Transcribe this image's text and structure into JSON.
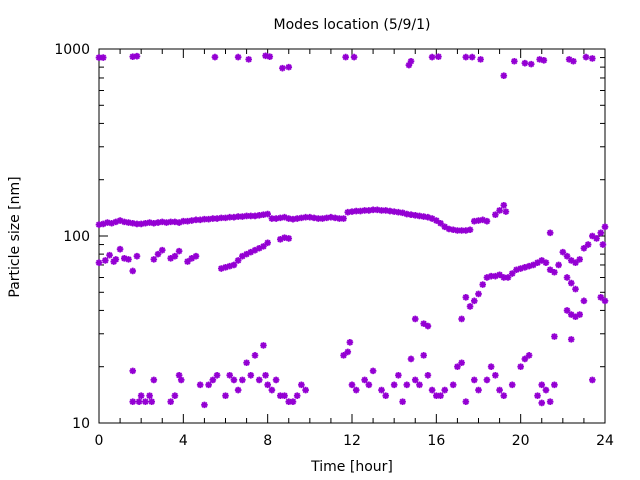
{
  "chart_data": {
    "type": "scatter",
    "title": "Modes location (5/9/1)",
    "xlabel": "Time [hour]",
    "ylabel": "Particle size [nm]",
    "xlim": [
      0,
      24
    ],
    "ylim": [
      10,
      1000
    ],
    "yscale": "log",
    "grid": false,
    "legend": "none",
    "marker": "star",
    "color": "#9400d3",
    "x_ticks": [
      0,
      4,
      8,
      12,
      16,
      20,
      24
    ],
    "x_tick_labels": [
      "0",
      "4",
      "8",
      "12",
      "16",
      "20",
      "24"
    ],
    "y_ticks": [
      10,
      100,
      1000
    ],
    "y_tick_labels": [
      "10",
      "100",
      "1000"
    ],
    "points": [
      [
        0.0,
        900
      ],
      [
        0.2,
        900
      ],
      [
        1.6,
        910
      ],
      [
        1.8,
        915
      ],
      [
        5.5,
        905
      ],
      [
        6.6,
        905
      ],
      [
        7.1,
        880
      ],
      [
        7.9,
        920
      ],
      [
        8.1,
        910
      ],
      [
        8.7,
        790
      ],
      [
        9.0,
        800
      ],
      [
        11.7,
        905
      ],
      [
        12.1,
        905
      ],
      [
        14.7,
        820
      ],
      [
        14.8,
        860
      ],
      [
        15.8,
        905
      ],
      [
        16.1,
        910
      ],
      [
        17.4,
        905
      ],
      [
        17.7,
        905
      ],
      [
        18.1,
        880
      ],
      [
        19.2,
        720
      ],
      [
        19.7,
        860
      ],
      [
        20.2,
        840
      ],
      [
        20.5,
        830
      ],
      [
        20.9,
        880
      ],
      [
        21.1,
        870
      ],
      [
        22.3,
        880
      ],
      [
        22.5,
        860
      ],
      [
        23.1,
        905
      ],
      [
        23.4,
        890
      ],
      [
        0.0,
        115
      ],
      [
        0.2,
        116
      ],
      [
        0.4,
        118
      ],
      [
        0.6,
        117
      ],
      [
        0.8,
        119
      ],
      [
        1.0,
        121
      ],
      [
        1.2,
        119
      ],
      [
        1.4,
        118
      ],
      [
        1.6,
        117
      ],
      [
        1.8,
        116
      ],
      [
        2.0,
        116
      ],
      [
        2.2,
        117
      ],
      [
        2.4,
        118
      ],
      [
        2.6,
        117
      ],
      [
        2.8,
        118
      ],
      [
        3.0,
        119
      ],
      [
        3.2,
        118
      ],
      [
        3.4,
        119
      ],
      [
        3.6,
        119
      ],
      [
        3.8,
        118
      ],
      [
        4.0,
        120
      ],
      [
        4.2,
        120
      ],
      [
        4.4,
        121
      ],
      [
        4.6,
        122
      ],
      [
        4.8,
        122
      ],
      [
        5.0,
        123
      ],
      [
        5.2,
        123
      ],
      [
        5.4,
        124
      ],
      [
        5.6,
        124
      ],
      [
        5.8,
        125
      ],
      [
        6.0,
        125
      ],
      [
        6.2,
        126
      ],
      [
        6.4,
        126
      ],
      [
        6.6,
        127
      ],
      [
        6.8,
        127
      ],
      [
        7.0,
        128
      ],
      [
        7.2,
        128
      ],
      [
        7.4,
        128
      ],
      [
        7.6,
        129
      ],
      [
        7.8,
        130
      ],
      [
        8.0,
        131
      ],
      [
        8.2,
        124
      ],
      [
        8.4,
        124
      ],
      [
        8.6,
        125
      ],
      [
        8.8,
        126
      ],
      [
        9.0,
        124
      ],
      [
        9.2,
        123
      ],
      [
        9.4,
        124
      ],
      [
        9.6,
        125
      ],
      [
        9.8,
        126
      ],
      [
        10.0,
        126
      ],
      [
        10.2,
        125
      ],
      [
        10.4,
        124
      ],
      [
        10.6,
        124
      ],
      [
        10.8,
        125
      ],
      [
        11.0,
        126
      ],
      [
        11.2,
        125
      ],
      [
        11.4,
        124
      ],
      [
        11.6,
        124
      ],
      [
        11.8,
        134
      ],
      [
        12.0,
        135
      ],
      [
        12.2,
        136
      ],
      [
        12.4,
        136
      ],
      [
        12.6,
        137
      ],
      [
        12.8,
        137
      ],
      [
        13.0,
        138
      ],
      [
        13.2,
        138
      ],
      [
        13.4,
        137
      ],
      [
        13.6,
        137
      ],
      [
        13.8,
        136
      ],
      [
        14.0,
        135
      ],
      [
        14.2,
        134
      ],
      [
        14.4,
        133
      ],
      [
        14.6,
        131
      ],
      [
        14.8,
        130
      ],
      [
        15.0,
        129
      ],
      [
        15.2,
        128
      ],
      [
        15.4,
        127
      ],
      [
        15.6,
        126
      ],
      [
        15.8,
        124
      ],
      [
        16.0,
        121
      ],
      [
        16.2,
        117
      ],
      [
        16.4,
        112
      ],
      [
        16.6,
        109
      ],
      [
        16.8,
        108
      ],
      [
        17.0,
        107
      ],
      [
        17.2,
        107
      ],
      [
        17.4,
        107
      ],
      [
        17.6,
        108
      ],
      [
        17.8,
        120
      ],
      [
        18.0,
        121
      ],
      [
        18.2,
        122
      ],
      [
        18.4,
        120
      ],
      [
        18.8,
        130
      ],
      [
        19.0,
        137
      ],
      [
        19.2,
        146
      ],
      [
        19.3,
        135
      ],
      [
        0.0,
        72
      ],
      [
        0.3,
        74
      ],
      [
        0.5,
        79
      ],
      [
        0.7,
        73
      ],
      [
        0.8,
        75
      ],
      [
        1.0,
        85
      ],
      [
        1.2,
        76
      ],
      [
        1.4,
        75
      ],
      [
        1.6,
        65
      ],
      [
        1.8,
        78
      ],
      [
        2.6,
        75
      ],
      [
        2.8,
        80
      ],
      [
        3.0,
        84
      ],
      [
        3.4,
        76
      ],
      [
        3.6,
        78
      ],
      [
        3.8,
        83
      ],
      [
        4.2,
        73
      ],
      [
        4.4,
        76
      ],
      [
        4.6,
        78
      ],
      [
        5.8,
        67
      ],
      [
        6.0,
        68
      ],
      [
        6.2,
        69
      ],
      [
        6.4,
        70
      ],
      [
        6.6,
        74
      ],
      [
        6.8,
        78
      ],
      [
        7.0,
        80
      ],
      [
        7.2,
        82
      ],
      [
        7.4,
        84
      ],
      [
        7.6,
        86
      ],
      [
        7.8,
        88
      ],
      [
        8.0,
        92
      ],
      [
        8.6,
        96
      ],
      [
        8.8,
        98
      ],
      [
        9.0,
        97
      ],
      [
        17.2,
        36
      ],
      [
        17.4,
        47
      ],
      [
        17.6,
        42
      ],
      [
        17.8,
        45
      ],
      [
        18.0,
        49
      ],
      [
        18.2,
        55
      ],
      [
        18.4,
        60
      ],
      [
        18.6,
        61
      ],
      [
        18.8,
        61
      ],
      [
        19.0,
        62
      ],
      [
        19.2,
        60
      ],
      [
        19.4,
        60
      ],
      [
        19.6,
        63
      ],
      [
        19.8,
        66
      ],
      [
        20.0,
        67
      ],
      [
        20.2,
        68
      ],
      [
        20.4,
        69
      ],
      [
        20.6,
        70
      ],
      [
        20.8,
        72
      ],
      [
        21.0,
        74
      ],
      [
        21.2,
        72
      ],
      [
        21.4,
        66
      ],
      [
        21.6,
        64
      ],
      [
        21.4,
        104
      ],
      [
        21.8,
        70
      ],
      [
        22.0,
        82
      ],
      [
        22.2,
        78
      ],
      [
        22.4,
        74
      ],
      [
        22.6,
        72
      ],
      [
        22.8,
        75
      ],
      [
        23.0,
        86
      ],
      [
        23.2,
        90
      ],
      [
        23.4,
        100
      ],
      [
        23.6,
        97
      ],
      [
        23.8,
        104
      ],
      [
        24.0,
        112
      ],
      [
        23.9,
        90
      ],
      [
        22.2,
        60
      ],
      [
        22.4,
        56
      ],
      [
        22.6,
        52
      ],
      [
        22.4,
        38
      ],
      [
        22.6,
        37
      ],
      [
        22.8,
        38
      ],
      [
        23.0,
        45
      ],
      [
        23.8,
        47
      ],
      [
        24.0,
        45
      ],
      [
        21.6,
        29
      ],
      [
        22.2,
        40
      ],
      [
        22.4,
        28
      ],
      [
        23.4,
        17
      ],
      [
        15.0,
        36
      ],
      [
        15.4,
        34
      ],
      [
        15.6,
        33
      ],
      [
        1.6,
        19
      ],
      [
        1.6,
        13
      ],
      [
        1.9,
        13
      ],
      [
        2.0,
        14
      ],
      [
        2.2,
        13
      ],
      [
        2.4,
        14
      ],
      [
        2.5,
        13
      ],
      [
        2.6,
        17
      ],
      [
        3.4,
        13
      ],
      [
        3.6,
        14
      ],
      [
        3.8,
        18
      ],
      [
        3.9,
        17
      ],
      [
        4.8,
        16
      ],
      [
        5.0,
        12.5
      ],
      [
        5.2,
        16
      ],
      [
        5.4,
        17
      ],
      [
        5.6,
        18
      ],
      [
        6.0,
        14
      ],
      [
        6.2,
        18
      ],
      [
        6.4,
        17
      ],
      [
        6.6,
        15
      ],
      [
        6.8,
        17
      ],
      [
        7.0,
        21
      ],
      [
        7.2,
        18
      ],
      [
        7.4,
        23
      ],
      [
        7.6,
        17
      ],
      [
        7.8,
        26
      ],
      [
        7.9,
        18
      ],
      [
        8.0,
        16
      ],
      [
        8.2,
        15
      ],
      [
        8.4,
        17
      ],
      [
        8.6,
        14
      ],
      [
        8.8,
        14
      ],
      [
        9.0,
        13
      ],
      [
        9.2,
        13
      ],
      [
        9.4,
        14
      ],
      [
        9.6,
        16
      ],
      [
        9.8,
        15
      ],
      [
        11.6,
        23
      ],
      [
        11.8,
        24
      ],
      [
        11.9,
        27
      ],
      [
        12.0,
        16
      ],
      [
        12.2,
        15
      ],
      [
        12.6,
        17
      ],
      [
        12.8,
        16
      ],
      [
        13.0,
        19
      ],
      [
        13.4,
        15
      ],
      [
        13.6,
        14
      ],
      [
        14.0,
        16
      ],
      [
        14.2,
        18
      ],
      [
        14.4,
        13
      ],
      [
        14.6,
        16
      ],
      [
        14.8,
        22
      ],
      [
        15.0,
        17
      ],
      [
        15.2,
        16
      ],
      [
        15.4,
        23
      ],
      [
        15.6,
        18
      ],
      [
        15.8,
        15
      ],
      [
        16.0,
        14
      ],
      [
        16.2,
        14
      ],
      [
        16.4,
        15
      ],
      [
        16.8,
        16
      ],
      [
        17.0,
        20
      ],
      [
        17.2,
        21
      ],
      [
        17.4,
        13
      ],
      [
        17.8,
        17
      ],
      [
        18.0,
        15
      ],
      [
        18.4,
        17
      ],
      [
        18.6,
        20
      ],
      [
        18.8,
        18
      ],
      [
        19.0,
        15
      ],
      [
        19.2,
        14
      ],
      [
        19.6,
        16
      ],
      [
        20.0,
        20
      ],
      [
        20.2,
        22
      ],
      [
        20.4,
        23
      ],
      [
        20.8,
        14
      ],
      [
        21.0,
        16
      ],
      [
        21.2,
        15
      ],
      [
        21.4,
        13
      ],
      [
        21.0,
        12.8
      ],
      [
        21.6,
        16
      ]
    ]
  }
}
